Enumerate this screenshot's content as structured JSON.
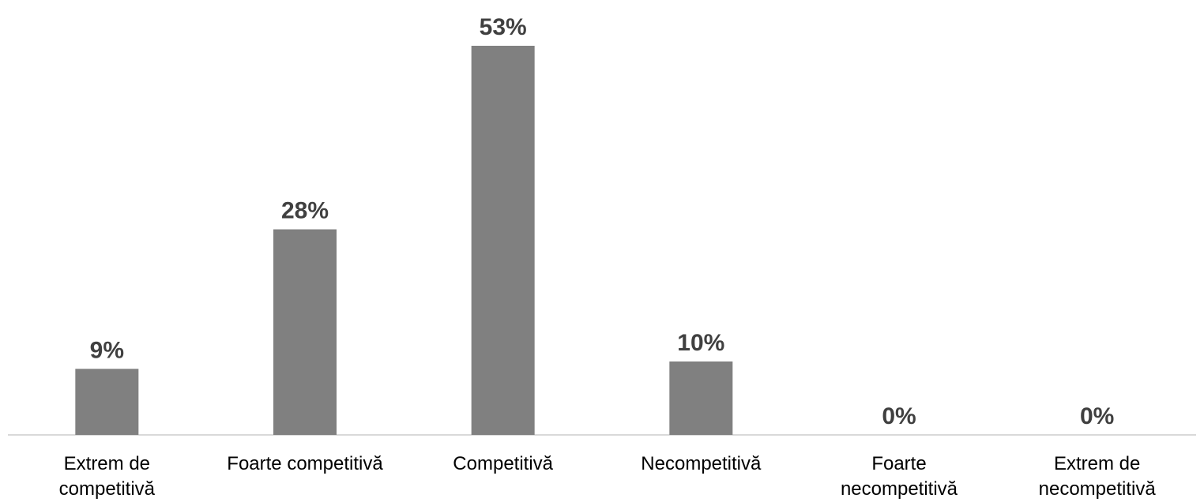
{
  "chart_data": {
    "type": "bar",
    "categories": [
      [
        "Extrem de",
        "competitivă"
      ],
      [
        "Foarte competitivă"
      ],
      [
        "Competitivă"
      ],
      [
        "Necompetitivă"
      ],
      [
        "Foarte",
        "necompetitivă"
      ],
      [
        "Extrem de",
        "necompetitivă"
      ]
    ],
    "values": [
      9,
      28,
      53,
      10,
      0,
      0
    ],
    "value_labels": [
      "9%",
      "28%",
      "53%",
      "10%",
      "0%",
      "0%"
    ],
    "ylim": [
      0,
      53
    ],
    "grid": false,
    "legend": "none",
    "colors": {
      "bar": "#808080",
      "axis": "#d9d9d9",
      "label": "#404040",
      "category": "#000000"
    }
  }
}
